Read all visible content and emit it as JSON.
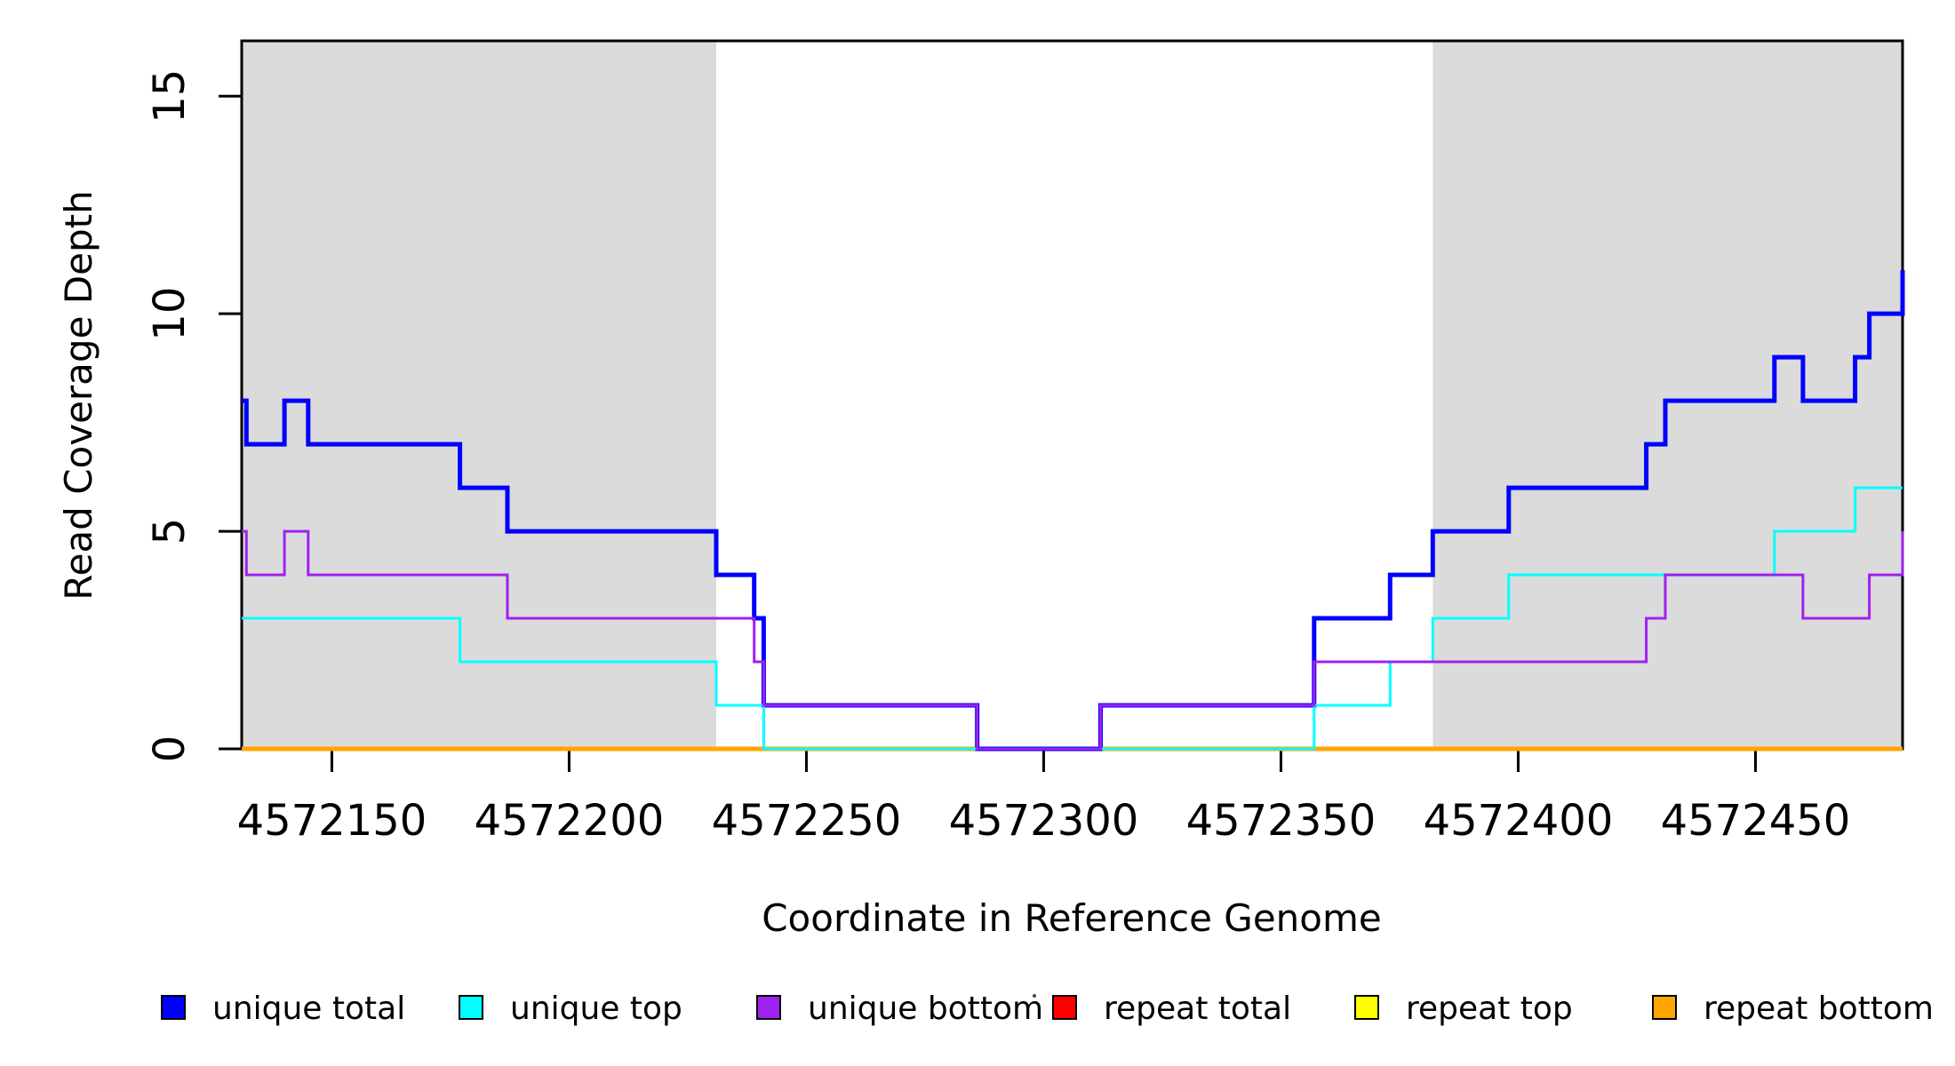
{
  "chart_data": {
    "type": "line",
    "subtype": "step-after",
    "title": "",
    "xlabel": "Coordinate in Reference Genome",
    "ylabel": "Read Coverage Depth",
    "xlim": [
      4572131,
      4572481
    ],
    "ylim": [
      0,
      16.27
    ],
    "x_ticks": [
      "4572150",
      "4572200",
      "4572250",
      "4572300",
      "4572350",
      "4572400",
      "4572450"
    ],
    "x_tick_values": [
      4572150,
      4572200,
      4572250,
      4572300,
      4572350,
      4572400,
      4572450
    ],
    "y_ticks": [
      "0",
      "5",
      "10",
      "15"
    ],
    "y_tick_values": [
      0,
      5,
      10,
      15
    ],
    "grid": false,
    "legend_position": "bottom",
    "shade_color": "#DBDBDB",
    "shaded_regions": [
      {
        "x0": 4572131,
        "x1": 4572231
      },
      {
        "x0": 4572382,
        "x1": 4572481
      }
    ],
    "series": [
      {
        "name": "unique total",
        "color": "#0000FF",
        "line_width": 5,
        "points": [
          [
            4572131,
            8
          ],
          [
            4572132,
            7
          ],
          [
            4572140,
            8
          ],
          [
            4572145,
            7
          ],
          [
            4572177,
            6
          ],
          [
            4572187,
            5
          ],
          [
            4572231,
            4
          ],
          [
            4572239,
            3
          ],
          [
            4572241,
            1
          ],
          [
            4572286,
            0
          ],
          [
            4572312,
            1
          ],
          [
            4572357,
            3
          ],
          [
            4572373,
            4
          ],
          [
            4572382,
            5
          ],
          [
            4572398,
            6
          ],
          [
            4572427,
            7
          ],
          [
            4572431,
            8
          ],
          [
            4572454,
            9
          ],
          [
            4572460,
            8
          ],
          [
            4572471,
            9
          ],
          [
            4572474,
            10
          ],
          [
            4572481,
            11
          ]
        ]
      },
      {
        "name": "unique top",
        "color": "#00FFFF",
        "line_width": 3,
        "points": [
          [
            4572131,
            3
          ],
          [
            4572177,
            2
          ],
          [
            4572231,
            1
          ],
          [
            4572241,
            0
          ],
          [
            4572357,
            1
          ],
          [
            4572373,
            2
          ],
          [
            4572382,
            3
          ],
          [
            4572398,
            4
          ],
          [
            4572454,
            5
          ],
          [
            4572471,
            6
          ]
        ]
      },
      {
        "name": "unique bottom",
        "color": "#A020F0",
        "line_width": 3,
        "points": [
          [
            4572131,
            5
          ],
          [
            4572132,
            4
          ],
          [
            4572140,
            5
          ],
          [
            4572145,
            4
          ],
          [
            4572187,
            3
          ],
          [
            4572239,
            2
          ],
          [
            4572241,
            1
          ],
          [
            4572286,
            0
          ],
          [
            4572312,
            1
          ],
          [
            4572357,
            2
          ],
          [
            4572427,
            3
          ],
          [
            4572431,
            4
          ],
          [
            4572460,
            3
          ],
          [
            4572474,
            4
          ],
          [
            4572481,
            5
          ]
        ]
      },
      {
        "name": "repeat total",
        "color": "#FF0000",
        "line_width": 3,
        "points": [
          [
            4572131,
            0
          ]
        ]
      },
      {
        "name": "repeat top",
        "color": "#FFFF00",
        "line_width": 3,
        "points": [
          [
            4572131,
            0
          ]
        ]
      },
      {
        "name": "repeat bottom",
        "color": "#FFA500",
        "line_width": 5,
        "points": [
          [
            4572131,
            0
          ]
        ]
      }
    ],
    "draw_order": [
      3,
      4,
      5,
      0,
      1,
      2
    ],
    "legend": [
      {
        "label": "unique total",
        "color": "#0000FF"
      },
      {
        "label": "unique top",
        "color": "#00FFFF"
      },
      {
        "label": "unique bottom",
        "color": "#A020F0"
      },
      {
        "label": "repeat total",
        "color": "#FF0000"
      },
      {
        "label": "repeat top",
        "color": "#FFFF00"
      },
      {
        "label": "repeat bottom",
        "color": "#FFA500"
      }
    ]
  }
}
